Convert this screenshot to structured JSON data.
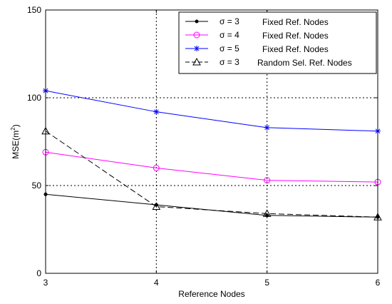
{
  "chart_data": {
    "type": "line",
    "title": "",
    "xlabel": "Reference Nodes",
    "ylabel": "MSE(m²)",
    "ylabel_base": "MSE(m",
    "ylabel_sup": "2",
    "ylabel_close": ")",
    "x": [
      3,
      4,
      5,
      6
    ],
    "xlim": [
      3,
      6
    ],
    "ylim": [
      0,
      150
    ],
    "x_ticks": [
      "3",
      "4",
      "5",
      "6"
    ],
    "y_ticks": [
      "0",
      "50",
      "100",
      "150"
    ],
    "grid": true,
    "legend_position": "top-right",
    "series": [
      {
        "name_symbol": "σ = 3",
        "name_desc": "Fixed Ref. Nodes",
        "values": [
          45,
          39,
          33,
          32
        ],
        "color": "#000000",
        "marker": "dot",
        "line_style": "solid"
      },
      {
        "name_symbol": "σ = 4",
        "name_desc": "Fixed Ref. Nodes",
        "values": [
          69,
          60,
          53,
          52
        ],
        "color": "#ff00ff",
        "marker": "circle",
        "line_style": "solid"
      },
      {
        "name_symbol": "σ = 5",
        "name_desc": "Fixed Ref. Nodes",
        "values": [
          104,
          92,
          83,
          81
        ],
        "color": "#0000ff",
        "marker": "star",
        "line_style": "solid"
      },
      {
        "name_symbol": "σ = 3",
        "name_desc": "Random Sel. Ref. Nodes",
        "values": [
          81,
          38,
          34,
          32
        ],
        "color": "#000000",
        "marker": "triangle",
        "line_style": "dashed"
      }
    ]
  }
}
